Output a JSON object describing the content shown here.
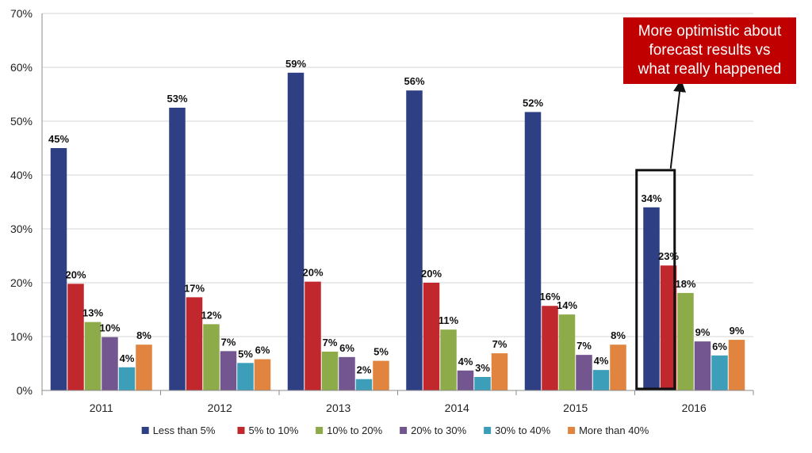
{
  "chart_data": {
    "type": "bar",
    "categories": [
      "2011",
      "2012",
      "2013",
      "2014",
      "2015",
      "2016"
    ],
    "series": [
      {
        "name": "Less than 5%",
        "color": "#2e3f83",
        "values": [
          45,
          52.5,
          59,
          55.7,
          51.7,
          34
        ],
        "labels": [
          "45%",
          "53%",
          "59%",
          "56%",
          "52%",
          "34%"
        ]
      },
      {
        "name": "5% to 10%",
        "color": "#c1282d",
        "values": [
          19.8,
          17.3,
          20.2,
          20,
          15.7,
          23.2
        ],
        "labels": [
          "20%",
          "17%",
          "20%",
          "20%",
          "16%",
          "23%"
        ]
      },
      {
        "name": "10% to 20%",
        "color": "#8eab4a",
        "values": [
          12.7,
          12.3,
          7.2,
          11.3,
          14.1,
          18.1
        ],
        "labels": [
          "13%",
          "12%",
          "7%",
          "11%",
          "14%",
          "18%"
        ]
      },
      {
        "name": "20% to 30%",
        "color": "#73558f",
        "values": [
          9.9,
          7.3,
          6.2,
          3.7,
          6.6,
          9.1
        ],
        "labels": [
          "10%",
          "7%",
          "6%",
          "4%",
          "7%",
          "9%"
        ]
      },
      {
        "name": "30% to 40%",
        "color": "#3c9eb9",
        "values": [
          4.3,
          5.1,
          2.1,
          2.5,
          3.8,
          6.5
        ],
        "labels": [
          "4%",
          "5%",
          "2%",
          "3%",
          "4%",
          "6%"
        ]
      },
      {
        "name": "More than 40%",
        "color": "#e0843f",
        "values": [
          8.5,
          5.8,
          5.5,
          6.9,
          8.5,
          9.4
        ],
        "labels": [
          "8%",
          "6%",
          "5%",
          "7%",
          "8%",
          "9%"
        ]
      }
    ],
    "ylim": [
      0,
      70
    ],
    "yticks": [
      "0%",
      "10%",
      "20%",
      "30%",
      "40%",
      "50%",
      "60%",
      "70%"
    ],
    "grid": true,
    "legend_position": "bottom",
    "highlight_category": "2016",
    "annotation": "More optimistic about\nforecast results vs\nwhat really happened",
    "annotation_color": "#c00000"
  }
}
